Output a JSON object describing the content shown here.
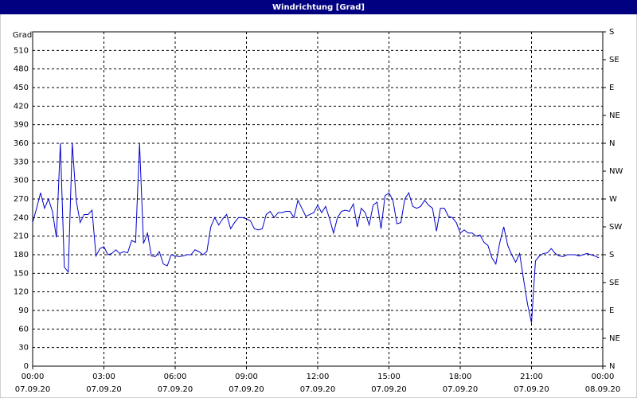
{
  "chart_data": {
    "type": "line",
    "title": "Windrichtung [Grad]",
    "y_label": "Grad",
    "x": [
      0,
      10,
      20,
      30,
      40,
      50,
      60,
      70,
      80,
      90,
      100,
      110,
      120,
      130,
      140,
      150,
      160,
      170,
      180,
      190,
      200,
      210,
      220,
      230,
      240,
      250,
      260,
      270,
      280,
      290,
      300,
      310,
      320,
      330,
      340,
      350,
      360,
      370,
      380,
      390,
      400,
      410,
      420,
      430,
      440,
      450,
      460,
      470,
      480,
      490,
      500,
      510,
      520,
      530,
      540,
      550,
      560,
      570,
      580,
      590,
      600,
      610,
      620,
      630,
      640,
      650,
      660,
      670,
      680,
      690,
      700,
      710,
      720,
      730,
      740,
      750,
      760,
      770,
      780,
      790,
      800,
      810,
      820,
      830,
      840,
      850,
      860,
      870,
      880,
      890,
      900,
      910,
      920,
      930,
      940,
      950,
      960,
      970,
      980,
      990,
      1000,
      1010,
      1020,
      1030,
      1040,
      1050,
      1060,
      1070,
      1080,
      1090,
      1100,
      1110,
      1120,
      1130,
      1140,
      1150,
      1160,
      1170,
      1180,
      1190,
      1200,
      1210,
      1220,
      1230,
      1240,
      1250,
      1260,
      1270,
      1280,
      1290,
      1300,
      1310,
      1320,
      1330,
      1340,
      1350,
      1360,
      1370,
      1380,
      1390,
      1400,
      1410,
      1420,
      1430
    ],
    "series": [
      {
        "color": "#0000cc",
        "values": [
          232,
          255,
          280,
          255,
          270,
          250,
          208,
          360,
          160,
          152,
          360,
          268,
          232,
          245,
          245,
          252,
          178,
          190,
          193,
          180,
          182,
          188,
          182,
          185,
          183,
          203,
          200,
          360,
          198,
          215,
          178,
          177,
          185,
          165,
          162,
          180,
          178,
          177,
          178,
          180,
          180,
          188,
          185,
          180,
          185,
          225,
          240,
          228,
          238,
          245,
          222,
          232,
          240,
          240,
          238,
          235,
          222,
          220,
          222,
          245,
          250,
          240,
          248,
          248,
          250,
          250,
          240,
          268,
          255,
          242,
          245,
          248,
          260,
          248,
          258,
          238,
          215,
          240,
          250,
          252,
          250,
          262,
          225,
          255,
          248,
          228,
          260,
          265,
          222,
          275,
          280,
          268,
          230,
          232,
          270,
          280,
          258,
          255,
          258,
          268,
          260,
          255,
          218,
          255,
          255,
          242,
          240,
          232,
          215,
          220,
          215,
          215,
          210,
          212,
          200,
          195,
          175,
          165,
          200,
          225,
          195,
          180,
          168,
          182,
          140,
          100,
          70,
          170,
          178,
          182,
          183,
          190,
          182,
          178,
          177,
          180,
          180,
          180,
          178,
          180,
          182,
          180,
          178,
          175
        ]
      }
    ],
    "xlim": [
      0,
      1440
    ],
    "xticks": [
      {
        "value": 0,
        "label": "00:00"
      },
      {
        "value": 180,
        "label": "03:00"
      },
      {
        "value": 360,
        "label": "06:00"
      },
      {
        "value": 540,
        "label": "09:00"
      },
      {
        "value": 720,
        "label": "12:00"
      },
      {
        "value": 900,
        "label": "15:00"
      },
      {
        "value": 1080,
        "label": "18:00"
      },
      {
        "value": 1260,
        "label": "21:00"
      },
      {
        "value": 1440,
        "label": "00:00"
      }
    ],
    "xtick_dates": [
      "07.09.20",
      "07.09.20",
      "07.09.20",
      "07.09.20",
      "07.09.20",
      "07.09.20",
      "07.09.20",
      "07.09.20",
      "08.09.20"
    ],
    "ylim": [
      0,
      540
    ],
    "yticks": [
      0,
      30,
      60,
      90,
      120,
      150,
      180,
      210,
      240,
      270,
      300,
      330,
      360,
      390,
      420,
      450,
      480,
      510
    ],
    "y2lim": [
      0,
      540
    ],
    "y2ticks": [
      {
        "value": 0,
        "label": "N"
      },
      {
        "value": 45,
        "label": "NE"
      },
      {
        "value": 90,
        "label": "E"
      },
      {
        "value": 135,
        "label": "SE"
      },
      {
        "value": 180,
        "label": "S"
      },
      {
        "value": 225,
        "label": "SW"
      },
      {
        "value": 270,
        "label": "W"
      },
      {
        "value": 315,
        "label": "NW"
      },
      {
        "value": 360,
        "label": "N"
      },
      {
        "value": 405,
        "label": "NE"
      },
      {
        "value": 450,
        "label": "E"
      },
      {
        "value": 495,
        "label": "SE"
      },
      {
        "value": 540,
        "label": "S"
      }
    ],
    "grid": true
  }
}
